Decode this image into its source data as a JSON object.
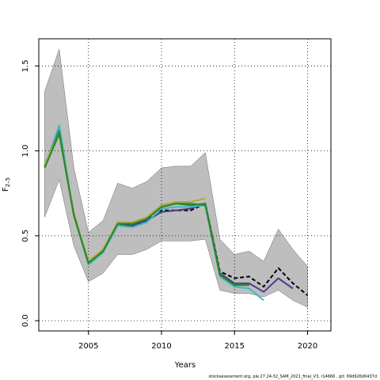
{
  "chart_data": {
    "type": "line",
    "xlabel": "Years",
    "ylabel_main": "F",
    "ylabel_sub": "2–5",
    "xlim": [
      2001.6,
      2021.6
    ],
    "ylim": [
      -0.06,
      1.66
    ],
    "x_ticks": [
      2005,
      2010,
      2015,
      2020
    ],
    "y_ticks": [
      0.0,
      0.5,
      1.0,
      1.5
    ],
    "x_tick_labels": [
      "2005",
      "2010",
      "2015",
      "2020"
    ],
    "y_tick_labels": [
      "0.0",
      "0.5",
      "1.0",
      "1.5"
    ],
    "grid": true,
    "confidence_band": {
      "x": [
        2002,
        2003,
        2004,
        2005,
        2006,
        2007,
        2008,
        2009,
        2010,
        2011,
        2012,
        2013,
        2014,
        2015,
        2016,
        2017,
        2018,
        2019,
        2020
      ],
      "upper": [
        1.35,
        1.6,
        0.9,
        0.52,
        0.59,
        0.81,
        0.78,
        0.82,
        0.9,
        0.91,
        0.91,
        0.99,
        0.48,
        0.39,
        0.41,
        0.35,
        0.54,
        0.42,
        0.32
      ],
      "lower": [
        0.61,
        0.83,
        0.44,
        0.23,
        0.28,
        0.39,
        0.39,
        0.42,
        0.47,
        0.47,
        0.47,
        0.48,
        0.18,
        0.16,
        0.16,
        0.14,
        0.18,
        0.12,
        0.08
      ],
      "color": "#bebebe"
    },
    "series": [
      {
        "color": "#000000",
        "dashed": true,
        "x": [
          2002,
          2003,
          2004,
          2005,
          2006,
          2007,
          2008,
          2009,
          2010,
          2011,
          2012,
          2013,
          2014,
          2015,
          2016,
          2017,
          2018,
          2019,
          2020
        ],
        "values": [
          0.91,
          1.11,
          0.63,
          0.34,
          0.41,
          0.57,
          0.56,
          0.59,
          0.65,
          0.65,
          0.65,
          0.69,
          0.29,
          0.25,
          0.26,
          0.2,
          0.31,
          0.22,
          0.15
        ]
      },
      {
        "color": "#483d8b",
        "x": [
          2002,
          2003,
          2004,
          2005,
          2006,
          2007,
          2008,
          2009,
          2010,
          2011,
          2012,
          2013,
          2014,
          2015,
          2016,
          2017,
          2018,
          2019
        ],
        "values": [
          0.91,
          1.11,
          0.63,
          0.34,
          0.41,
          0.57,
          0.56,
          0.59,
          0.64,
          0.65,
          0.66,
          0.69,
          0.28,
          0.22,
          0.22,
          0.17,
          0.25,
          0.19
        ]
      },
      {
        "color": "#41b6c4",
        "x": [
          2002,
          2003,
          2004,
          2005,
          2006,
          2007,
          2008,
          2009,
          2010,
          2011,
          2012,
          2013,
          2014,
          2015,
          2016,
          2017
        ],
        "values": [
          0.9,
          1.15,
          0.62,
          0.33,
          0.4,
          0.56,
          0.55,
          0.58,
          0.66,
          0.67,
          0.67,
          0.68,
          0.26,
          0.2,
          0.19,
          0.12
        ]
      },
      {
        "color": "#2e8b57",
        "x": [
          2002,
          2003,
          2004,
          2005,
          2006,
          2007,
          2008,
          2009,
          2010,
          2011,
          2012,
          2013,
          2014,
          2015,
          2016
        ],
        "values": [
          0.91,
          1.12,
          0.62,
          0.34,
          0.41,
          0.58,
          0.57,
          0.6,
          0.67,
          0.69,
          0.69,
          0.68,
          0.27,
          0.21,
          0.21
        ]
      },
      {
        "color": "#b5a642",
        "x": [
          2002,
          2003,
          2004,
          2005,
          2006,
          2007,
          2008,
          2009,
          2010,
          2011,
          2012,
          2013
        ],
        "values": [
          0.92,
          1.1,
          0.63,
          0.35,
          0.42,
          0.58,
          0.58,
          0.61,
          0.68,
          0.7,
          0.7,
          0.72
        ]
      },
      {
        "color": "#228b22",
        "x": [
          2002,
          2003,
          2004,
          2005,
          2006,
          2007,
          2008,
          2009,
          2010,
          2011,
          2012,
          2013,
          2014,
          2015,
          2016
        ],
        "values": [
          0.9,
          1.1,
          0.62,
          0.34,
          0.41,
          0.57,
          0.57,
          0.6,
          0.67,
          0.69,
          0.68,
          0.69,
          0.27,
          0.21,
          0.21
        ]
      }
    ]
  },
  "footer": "stockassessment.org, ple.27.24-32_SAM_2021_final_V3, r14666 , git: 69d926d0437d"
}
